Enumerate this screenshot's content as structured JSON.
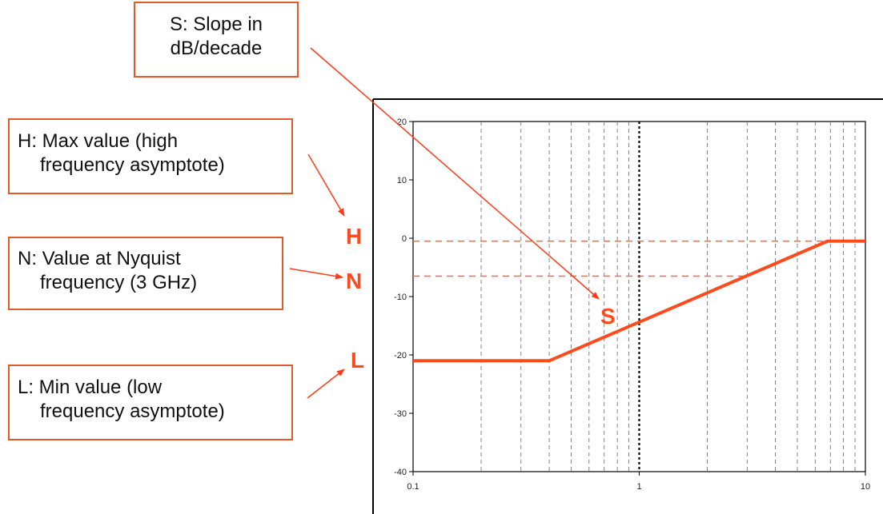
{
  "callouts": {
    "slope": {
      "line1": "S:  Slope in",
      "line2": "dB/decade"
    },
    "max": {
      "line1": "H:  Max value (high",
      "line2": "frequency asymptote)"
    },
    "nyquist": {
      "line1": "N:  Value at Nyquist",
      "line2": "frequency (3 GHz)"
    },
    "min": {
      "line1": "L:  Min value (low",
      "line2": "frequency asymptote)"
    }
  },
  "markers": {
    "H": "H",
    "N": "N",
    "L": "L",
    "S": "S"
  },
  "plot": {
    "x_scale": "log",
    "x_range": [
      0.1,
      10
    ],
    "y_range": [
      -40,
      20
    ],
    "x_ticks": [
      "0.1",
      "1",
      "10"
    ],
    "y_ticks": [
      "20",
      "10",
      "0",
      "-10",
      "-20",
      "-30",
      "-40"
    ],
    "y_tick_values": [
      20,
      10,
      0,
      -10,
      -20,
      -30,
      -40
    ],
    "curve_points": [
      [
        0.1,
        -21
      ],
      [
        0.4,
        -21
      ],
      [
        6.8,
        -0.5
      ],
      [
        10,
        -0.5
      ]
    ],
    "H_value": -0.5,
    "N_value": -6.5,
    "N_frequency": 3,
    "colors": {
      "curve": "#ff4a1c",
      "callout_border": "#e05a2a",
      "reference_lines": "#f07060",
      "arrows": "#ff3b1a",
      "grid": "#666666"
    }
  }
}
